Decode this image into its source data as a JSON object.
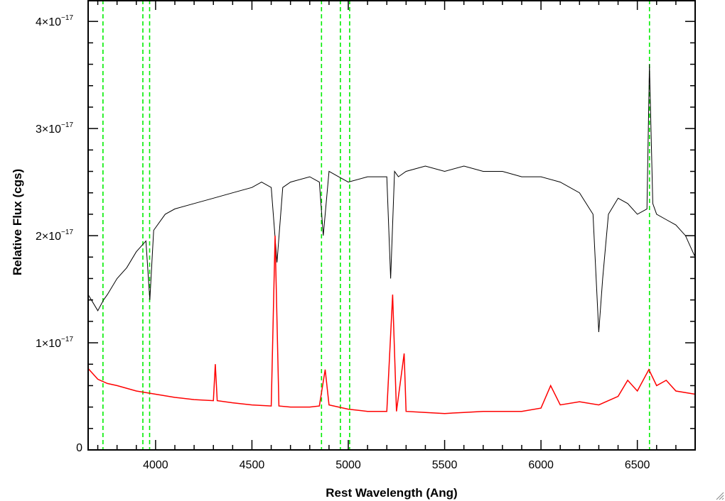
{
  "chart_data": {
    "type": "line",
    "title": "",
    "xlabel": "Rest Wavelength (Ang)",
    "ylabel": "Relative Flux (cgs)",
    "xlim": [
      3650,
      6800
    ],
    "ylim": [
      0,
      4.2e-17
    ],
    "x_ticks": [
      4000,
      4500,
      5000,
      5500,
      6000,
      6500
    ],
    "x_tick_labels": [
      "4000",
      "4500",
      "5000",
      "5500",
      "6000",
      "6500"
    ],
    "y_ticks": [
      0,
      1e-17,
      2e-17,
      3e-17,
      4e-17
    ],
    "y_tick_labels": [
      {
        "mantissa": "0",
        "exponent": ""
      },
      {
        "mantissa": "1×10",
        "exponent": "−17"
      },
      {
        "mantissa": "2×10",
        "exponent": "−17"
      },
      {
        "mantissa": "3×10",
        "exponent": "−17"
      },
      {
        "mantissa": "4×10",
        "exponent": "−17"
      }
    ],
    "grid": false,
    "legend": "none",
    "series": [
      {
        "color": "#000000",
        "style": "solid",
        "x": [
          3650,
          3700,
          3730,
          3750,
          3800,
          3850,
          3900,
          3950,
          3970,
          3990,
          4050,
          4100,
          4200,
          4300,
          4400,
          4500,
          4550,
          4600,
          4630,
          4660,
          4700,
          4800,
          4850,
          4870,
          4900,
          4950,
          5000,
          5100,
          5200,
          5220,
          5240,
          5260,
          5300,
          5400,
          5500,
          5600,
          5700,
          5800,
          5900,
          6000,
          6100,
          6200,
          6270,
          6300,
          6320,
          6350,
          6400,
          6450,
          6500,
          6550,
          6563,
          6580,
          6600,
          6650,
          6700,
          6750,
          6800
        ],
        "y": [
          1.45e-17,
          1.3e-17,
          1.4e-17,
          1.45e-17,
          1.6e-17,
          1.7e-17,
          1.85e-17,
          1.95e-17,
          1.4e-17,
          2.05e-17,
          2.2e-17,
          2.25e-17,
          2.3e-17,
          2.35e-17,
          2.4e-17,
          2.45e-17,
          2.5e-17,
          2.45e-17,
          1.75e-17,
          2.45e-17,
          2.5e-17,
          2.55e-17,
          2.5e-17,
          2e-17,
          2.6e-17,
          2.55e-17,
          2.5e-17,
          2.55e-17,
          2.55e-17,
          1.6e-17,
          2.6e-17,
          2.55e-17,
          2.6e-17,
          2.65e-17,
          2.6e-17,
          2.65e-17,
          2.6e-17,
          2.6e-17,
          2.55e-17,
          2.55e-17,
          2.5e-17,
          2.4e-17,
          2.2e-17,
          1.1e-17,
          1.6e-17,
          2.2e-17,
          2.35e-17,
          2.3e-17,
          2.2e-17,
          2.25e-17,
          3.6e-17,
          2.3e-17,
          2.2e-17,
          2.15e-17,
          2.1e-17,
          2e-17,
          1.8e-17
        ]
      },
      {
        "color": "#ff0000",
        "style": "solid",
        "x": [
          3650,
          3700,
          3750,
          3800,
          3900,
          4000,
          4100,
          4200,
          4300,
          4310,
          4320,
          4400,
          4500,
          4600,
          4620,
          4640,
          4700,
          4800,
          4850,
          4880,
          4900,
          5000,
          5100,
          5200,
          5230,
          5250,
          5290,
          5300,
          5400,
          5500,
          5600,
          5700,
          5800,
          5900,
          6000,
          6050,
          6100,
          6200,
          6300,
          6400,
          6450,
          6500,
          6560,
          6600,
          6650,
          6700,
          6800
        ],
        "y": [
          7.6e-18,
          6.6e-18,
          6.2e-18,
          6e-18,
          5.5e-18,
          5.2e-18,
          4.9e-18,
          4.7e-18,
          4.6e-18,
          8e-18,
          4.6e-18,
          4.4e-18,
          4.2e-18,
          4.1e-18,
          2e-17,
          4.1e-18,
          4e-18,
          4e-18,
          4.1e-18,
          7.5e-18,
          4.2e-18,
          3.8e-18,
          3.6e-18,
          3.6e-18,
          1.45e-17,
          3.6e-18,
          9e-18,
          3.6e-18,
          3.5e-18,
          3.4e-18,
          3.5e-18,
          3.6e-18,
          3.6e-18,
          3.6e-18,
          3.9e-18,
          6e-18,
          4.2e-18,
          4.5e-18,
          4.2e-18,
          5e-18,
          6.5e-18,
          5.5e-18,
          7.5e-18,
          6e-18,
          6.5e-18,
          5.5e-18,
          5.2e-18
        ]
      }
    ],
    "vertical_lines": {
      "color": "#00ee00",
      "style": "dashed",
      "x": [
        3727,
        3934,
        3969,
        4861,
        4959,
        5007,
        6563
      ]
    }
  }
}
